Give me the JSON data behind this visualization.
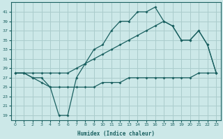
{
  "xlabel": "Humidex (Indice chaleur)",
  "bg_color": "#cce8e8",
  "grid_color": "#aacccc",
  "line_color": "#1a6060",
  "xlim": [
    -0.5,
    23.5
  ],
  "ylim": [
    18,
    43
  ],
  "yticks": [
    19,
    21,
    23,
    25,
    27,
    29,
    31,
    33,
    35,
    37,
    39,
    41
  ],
  "xticks": [
    0,
    1,
    2,
    3,
    4,
    5,
    6,
    7,
    8,
    9,
    10,
    11,
    12,
    13,
    14,
    15,
    16,
    17,
    18,
    19,
    20,
    21,
    22,
    23
  ],
  "curve1_x": [
    0,
    1,
    2,
    3,
    4,
    5,
    6,
    7,
    8,
    9,
    10,
    11,
    12,
    13,
    14,
    15,
    16,
    17,
    18,
    19,
    20,
    21,
    22,
    23
  ],
  "curve1_y": [
    28,
    28,
    27,
    27,
    25,
    19,
    19,
    27,
    30,
    33,
    34,
    37,
    39,
    39,
    41,
    41,
    42,
    39,
    38,
    35,
    35,
    37,
    34,
    28
  ],
  "curve2_x": [
    0,
    1,
    2,
    3,
    4,
    5,
    6,
    7,
    8,
    9,
    10,
    11,
    12,
    13,
    14,
    15,
    16,
    17,
    18,
    19,
    20,
    21,
    22,
    23
  ],
  "curve2_y": [
    28,
    28,
    28,
    28,
    28,
    28,
    28,
    29,
    30,
    31,
    32,
    33,
    34,
    35,
    36,
    37,
    38,
    39,
    38,
    35,
    35,
    37,
    34,
    28
  ],
  "curve3_x": [
    0,
    1,
    2,
    3,
    4,
    5,
    6,
    7,
    8,
    9,
    10,
    11,
    12,
    13,
    14,
    15,
    16,
    17,
    18,
    19,
    20,
    21,
    22,
    23
  ],
  "curve3_y": [
    28,
    28,
    27,
    26,
    25,
    25,
    25,
    25,
    25,
    25,
    26,
    26,
    26,
    27,
    27,
    27,
    27,
    27,
    27,
    27,
    27,
    28,
    28,
    28
  ]
}
